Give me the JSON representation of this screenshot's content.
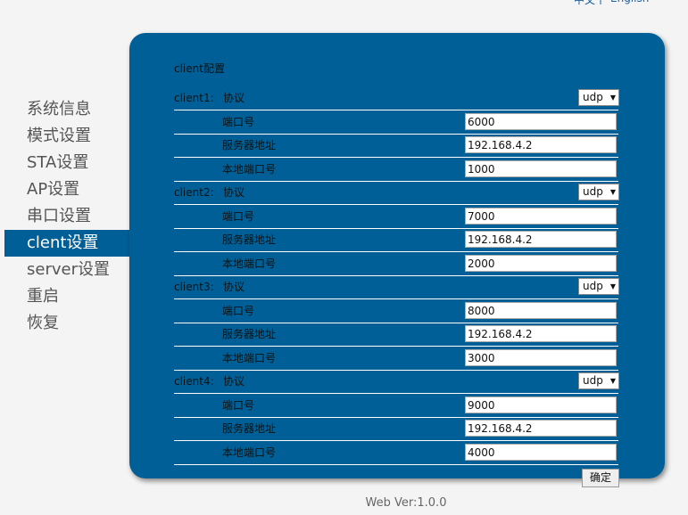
{
  "header": {
    "language_links": [
      "中文",
      "English"
    ]
  },
  "sidebar": {
    "items": [
      "系统信息",
      "模式设置",
      "STA设置",
      "AP设置",
      "串口设置",
      "clent设置",
      "server设置",
      "重启",
      "恢复"
    ],
    "active": 5
  },
  "panel": {
    "title": "client配置",
    "clients": [
      {
        "label": "client1:",
        "protocol_label": "协议",
        "protocol": "udp",
        "fields": [
          {
            "label": "端口号",
            "value": "6000"
          },
          {
            "label": "服务器地址",
            "value": "192.168.4.2"
          },
          {
            "label": "本地端口号",
            "value": "1000"
          }
        ]
      },
      {
        "label": "client2:",
        "protocol_label": "协议",
        "protocol": "udp",
        "fields": [
          {
            "label": "端口号",
            "value": "7000"
          },
          {
            "label": "服务器地址",
            "value": "192.168.4.2"
          },
          {
            "label": "本地端口号",
            "value": "2000"
          }
        ]
      },
      {
        "label": "client3:",
        "protocol_label": "协议",
        "protocol": "udp",
        "fields": [
          {
            "label": "端口号",
            "value": "8000"
          },
          {
            "label": "服务器地址",
            "value": "192.168.4.2"
          },
          {
            "label": "本地端口号",
            "value": "3000"
          }
        ]
      },
      {
        "label": "client4:",
        "protocol_label": "协议",
        "protocol": "udp",
        "fields": [
          {
            "label": "端口号",
            "value": "9000"
          },
          {
            "label": "服务器地址",
            "value": "192.168.4.2"
          },
          {
            "label": "本地端口号",
            "value": "4000"
          }
        ]
      }
    ],
    "button": "确定"
  },
  "footer": "Web Ver:1.0.0"
}
